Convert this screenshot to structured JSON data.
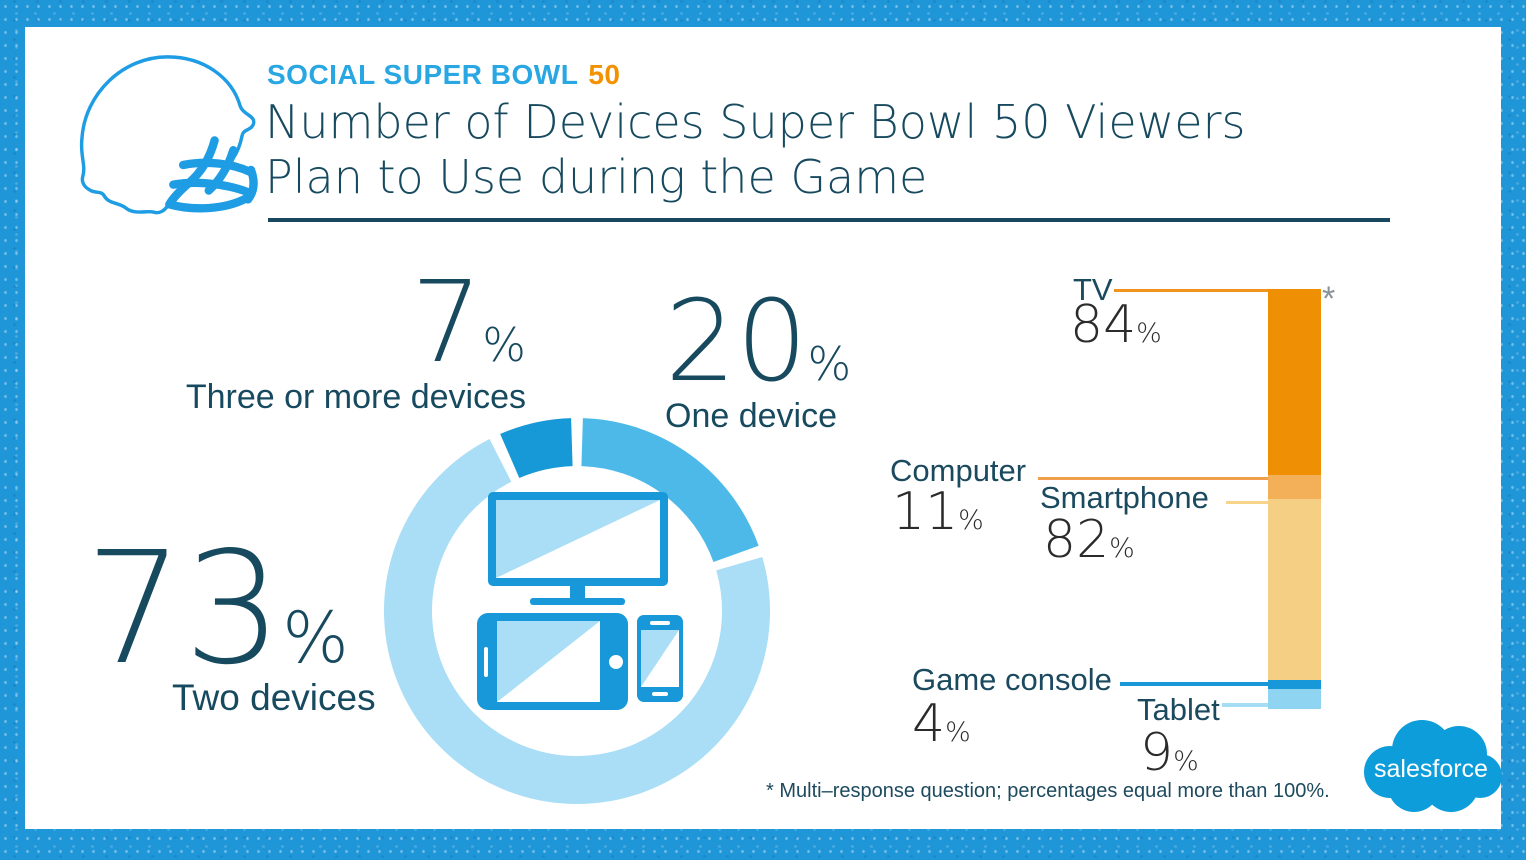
{
  "header": {
    "eyebrow": "SOCIAL SUPER BOWL",
    "eyebrow_highlight": "50",
    "title_line1": "Number of Devices Super Bowl 50 Viewers",
    "title_line2": "Plan to Use during the Game"
  },
  "percent_sign": "%",
  "footnote": {
    "marker": "*",
    "text": "* Multi–response question; percentages equal more than 100%."
  },
  "brand": {
    "logo_text": "salesforce"
  },
  "icons": {
    "header": "football-helmet-icon",
    "donut_center": "tv-tablet-smartphone-devices-icon",
    "brand": "salesforce-cloud-logo"
  },
  "colors": {
    "frame_blue": "#1f96d8",
    "bright_blue": "#29a7e3",
    "accent_orange": "#f39200",
    "dark_teal_text": "#174a5f",
    "number_black": "#2b2b2b",
    "asterisk_gray": "#8a9299",
    "device_icon_blue": "#1898d8",
    "device_icon_light": "#a9def6"
  },
  "chart_data": [
    {
      "type": "pie",
      "subtype": "donut",
      "title": "Number of devices Super Bowl 50 viewers plan to use during the game",
      "unit": "%",
      "start_angle_deg": 0,
      "gap_deg": 3.5,
      "legend_position": "around",
      "center_icon": "tv-tablet-smartphone",
      "segments": [
        {
          "label": "One device",
          "value": 20,
          "color": "#4cb9e9"
        },
        {
          "label": "Two devices",
          "value": 73,
          "color": "#a9def6"
        },
        {
          "label": "Three or more devices",
          "value": 7,
          "color": "#1699d6"
        }
      ]
    },
    {
      "type": "bar",
      "subtype": "stacked-single-column",
      "title": "Devices Super Bowl 50 viewers plan to use during the game",
      "unit": "%",
      "note_marker": "*",
      "total_percent": 190,
      "segments": [
        {
          "label": "TV",
          "value": 84,
          "color": "#ee8f04",
          "leader_color": "#f1941d"
        },
        {
          "label": "Computer",
          "value": 11,
          "color": "#f3b059",
          "leader_color": "#f0a04a"
        },
        {
          "label": "Smartphone",
          "value": 82,
          "color": "#f5d084",
          "leader_color": "#f8d48a"
        },
        {
          "label": "Game console",
          "value": 4,
          "color": "#1898d8",
          "leader_color": "#1898d8"
        },
        {
          "label": "Tablet",
          "value": 9,
          "color": "#8fd4f0",
          "leader_color": "#a5ddf5"
        }
      ]
    }
  ]
}
